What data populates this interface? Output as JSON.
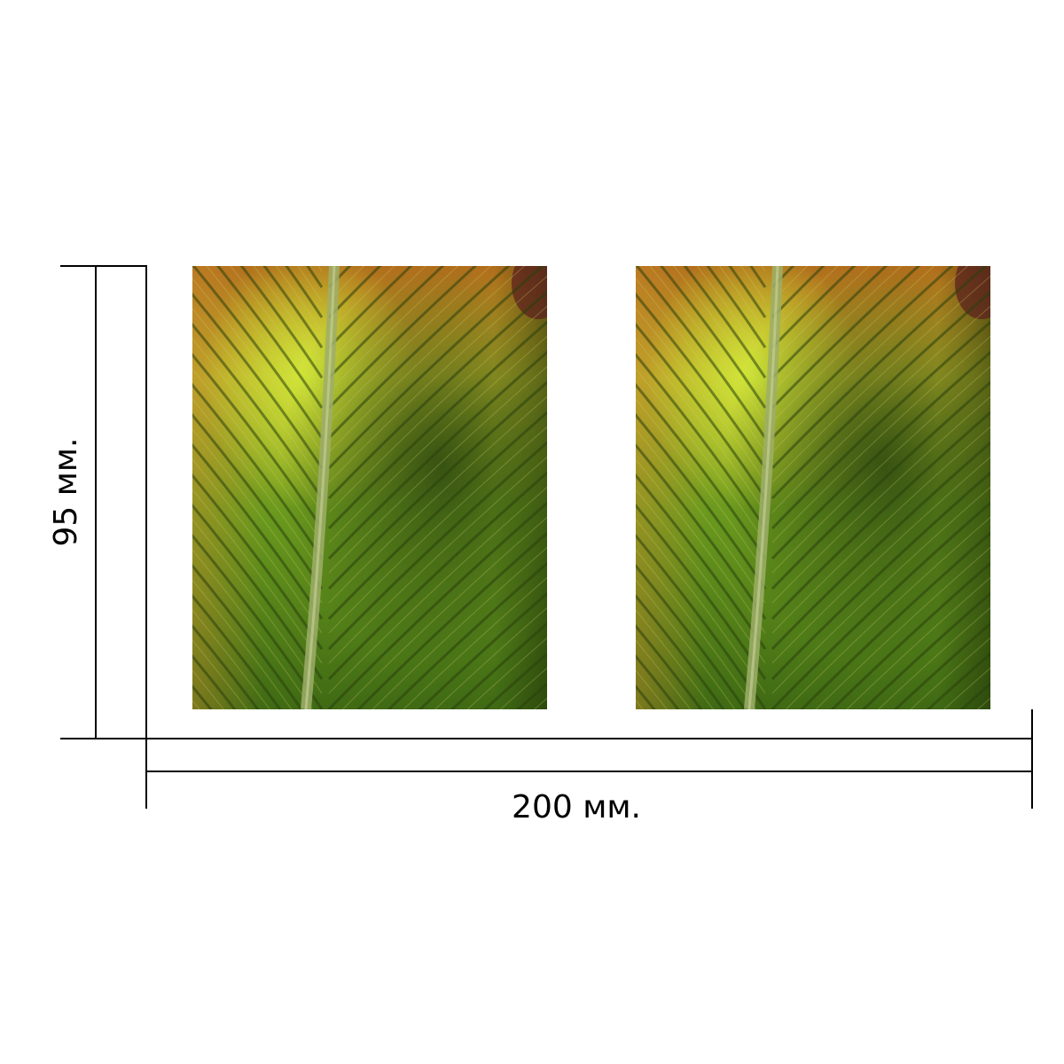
{
  "dimensions": {
    "width_label": "200 мм.",
    "height_label": "95 мм."
  },
  "images": [
    {
      "name": "leaf-photo-left"
    },
    {
      "name": "leaf-photo-right"
    }
  ],
  "colors": {
    "line": "#000000",
    "leaf_dark": "#2e4a10",
    "leaf_green": "#6b9a1e",
    "leaf_yellow": "#b8b02a",
    "leaf_orange": "#b06d1c"
  }
}
